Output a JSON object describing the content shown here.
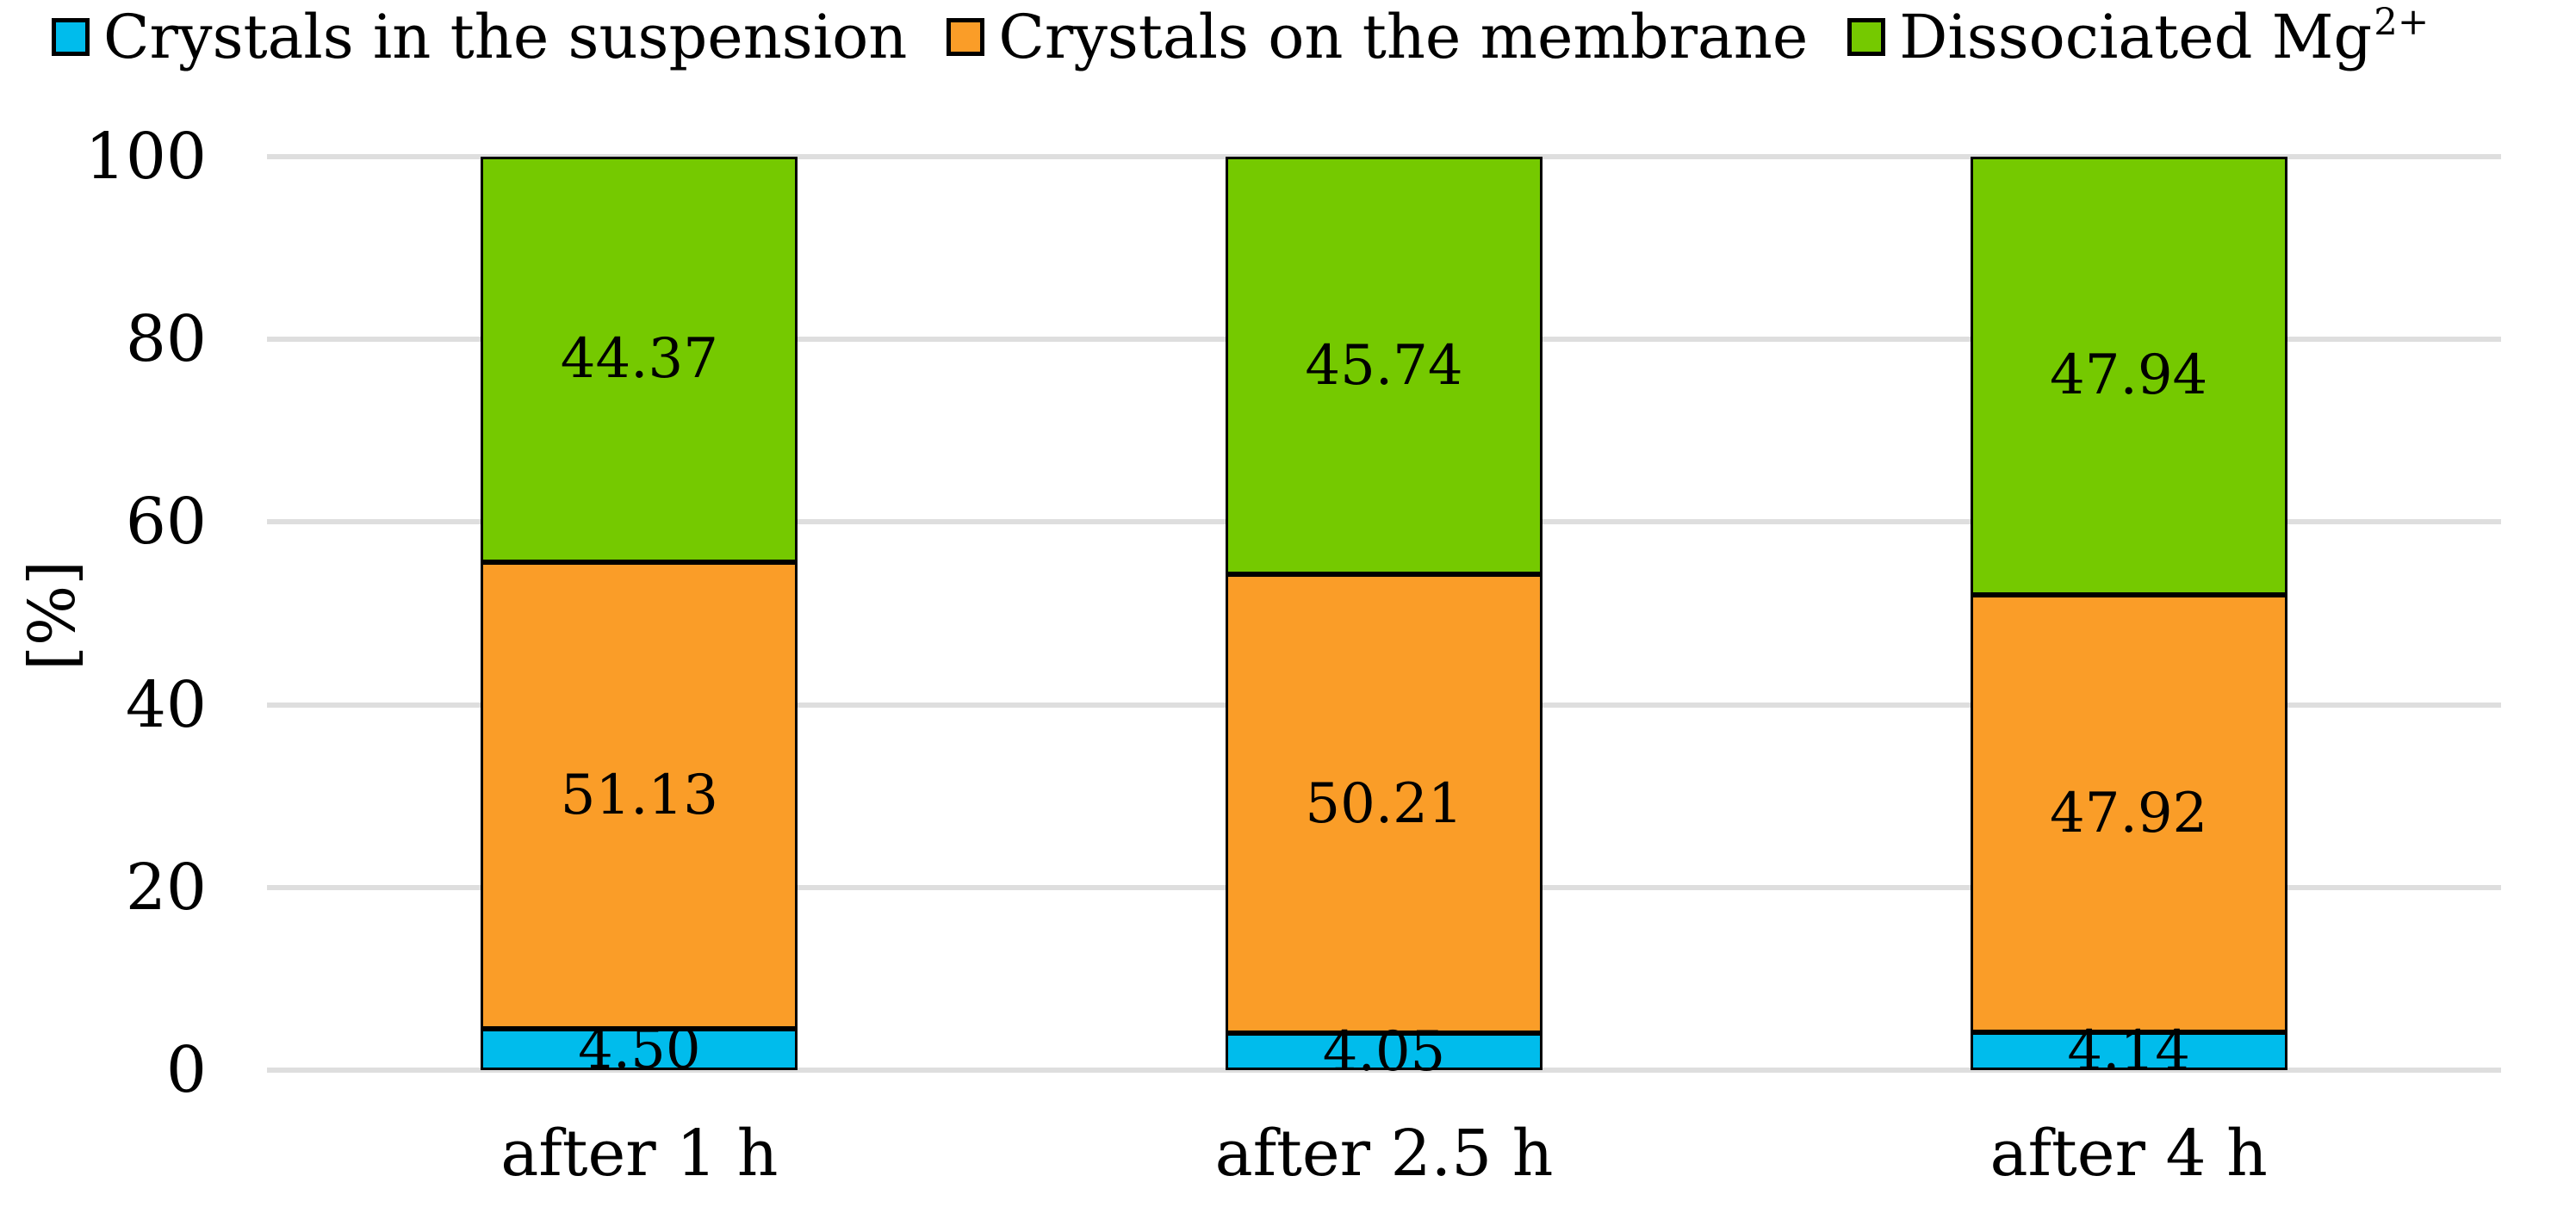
{
  "chart_data": {
    "type": "bar",
    "stacked": true,
    "title": "",
    "ylabel": "[%]",
    "xlabel": "",
    "ylim": [
      0,
      100
    ],
    "yticks": [
      0,
      20,
      40,
      60,
      80,
      100
    ],
    "grid": true,
    "legend_position": "top",
    "categories": [
      "after 1 h",
      "after 2.5 h",
      "after 4 h"
    ],
    "series": [
      {
        "name": "Crystals in the suspension",
        "name_base": "Crystals in the suspension",
        "name_sup": "",
        "color": "#00BCEC",
        "values": [
          4.5,
          4.05,
          4.14
        ],
        "labels": [
          "4.50",
          "4.05",
          "4.14"
        ]
      },
      {
        "name": "Crystals on the membrane",
        "name_base": "Crystals on the membrane",
        "name_sup": "",
        "color": "#FA9D28",
        "values": [
          51.13,
          50.21,
          47.92
        ],
        "labels": [
          "51.13",
          "50.21",
          "47.92"
        ]
      },
      {
        "name": "Dissociated Mg2+",
        "name_base": "Dissociated Mg",
        "name_sup": "2+",
        "color": "#75C900",
        "values": [
          44.37,
          45.74,
          47.94
        ],
        "labels": [
          "44.37",
          "45.74",
          "47.94"
        ]
      }
    ],
    "colors": {
      "gridline": "#DEDEDE",
      "bar_border": "#000000",
      "text": "#000000",
      "background": "#FFFFFF"
    }
  }
}
